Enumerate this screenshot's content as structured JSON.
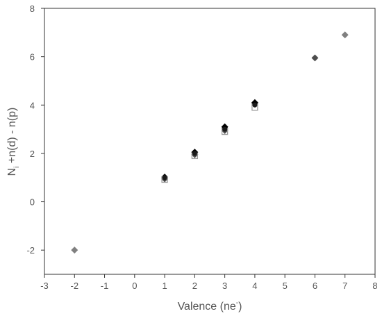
{
  "chart_data": {
    "type": "scatter",
    "title": "",
    "xlabel": "Valence (ne",
    "xlabel_superscript": "-",
    "xlabel_close": ")",
    "ylabel_prefix": "N",
    "ylabel_subscript": "i",
    "ylabel_rest": " +n(d) - n(p)",
    "xlim": [
      -3,
      8
    ],
    "ylim": [
      -3,
      8
    ],
    "xticks": [
      -3,
      -2,
      -1,
      0,
      1,
      2,
      3,
      4,
      5,
      6,
      7,
      8
    ],
    "yticks": [
      -2,
      0,
      2,
      4,
      6,
      8
    ],
    "grid": false,
    "legend": "none",
    "series": [
      {
        "marker": "diamond",
        "color": "#808080",
        "points": [
          [
            -2,
            -2.0
          ],
          [
            7,
            6.9
          ],
          [
            3,
            3.05
          ],
          [
            4,
            4.05
          ]
        ]
      },
      {
        "marker": "diamond",
        "color": "#4d4d4d",
        "points": [
          [
            6,
            5.95
          ],
          [
            1,
            0.95
          ],
          [
            2,
            1.95
          ],
          [
            3,
            2.95
          ]
        ]
      },
      {
        "marker": "diamond",
        "color": "#000000",
        "points": [
          [
            1,
            1.02
          ],
          [
            2,
            2.05
          ],
          [
            3,
            3.1
          ],
          [
            4,
            4.1
          ]
        ]
      },
      {
        "marker": "square-open",
        "color": "#999999",
        "points": [
          [
            1,
            0.92
          ],
          [
            2,
            1.9
          ],
          [
            3,
            2.9
          ],
          [
            4,
            3.9
          ]
        ]
      },
      {
        "marker": "circle",
        "color": "#1a1a1a",
        "points": [
          [
            1,
            1.0
          ],
          [
            2,
            2.0
          ],
          [
            3,
            3.0
          ],
          [
            4,
            4.0
          ]
        ]
      }
    ]
  }
}
